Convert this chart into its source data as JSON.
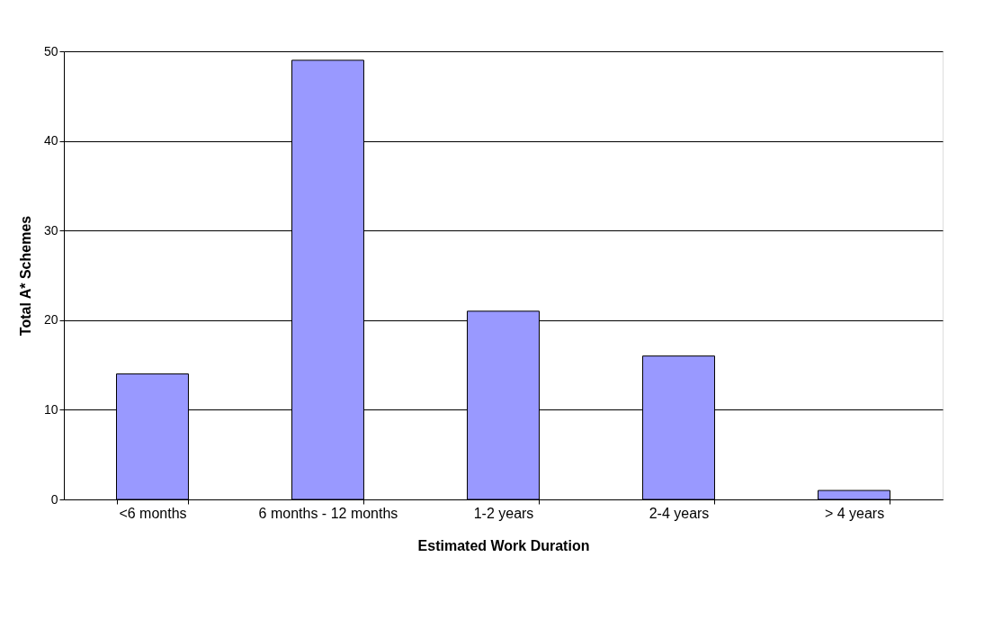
{
  "chart_data": {
    "type": "bar",
    "xlabel": "Estimated Work Duration",
    "ylabel": "Total A* Schemes",
    "categories": [
      "<6 months",
      "6 months - 12 months",
      "1-2 years",
      "2-4 years",
      "> 4 years"
    ],
    "values": [
      14,
      49,
      21,
      16,
      1
    ],
    "color": "#9999ff",
    "ylim": [
      0,
      50
    ],
    "yticks": [
      0,
      10,
      20,
      30,
      40,
      50
    ],
    "grid": "y"
  }
}
